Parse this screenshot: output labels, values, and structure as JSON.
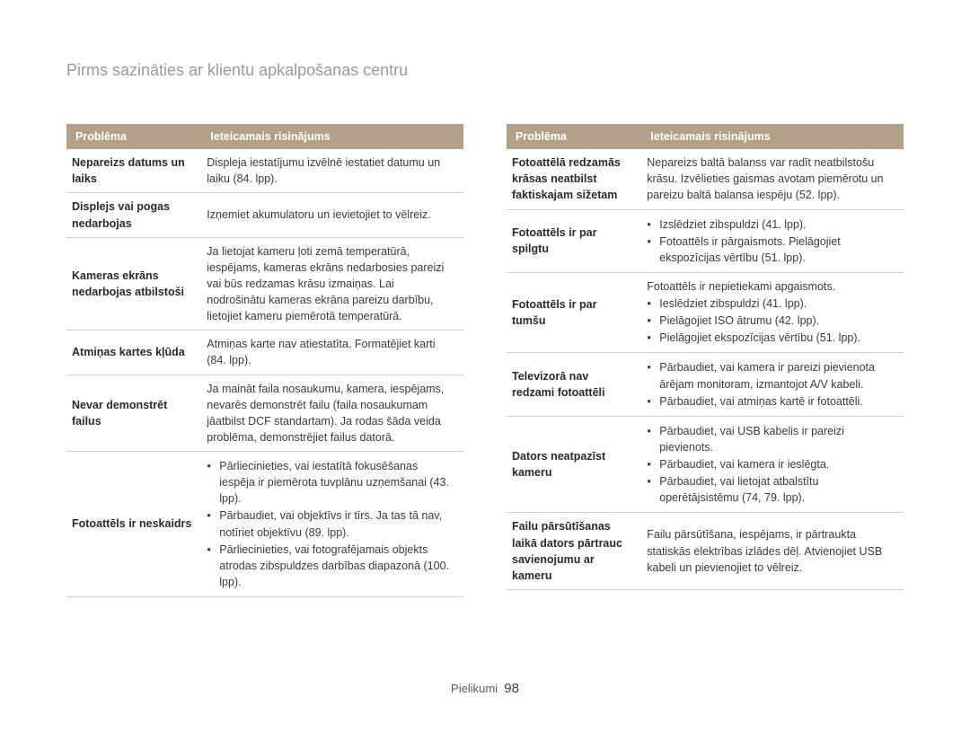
{
  "page": {
    "title": "Pirms sazināties ar klientu apkalpošanas centru",
    "footer_label": "Pielikumi",
    "footer_page": "98"
  },
  "headers": {
    "problem": "Problēma",
    "solution": "Ieteicamais risinājums"
  },
  "table_left": {
    "rows": [
      {
        "problem": "Nepareizs datums un laiks",
        "solution_text": "Displeja iestatījumu izvēlnē iestatiet datumu un laiku (84. lpp)."
      },
      {
        "problem": "Displejs vai pogas nedarbojas",
        "solution_text": "Izņemiet akumulatoru un ievietojiet to vēlreiz."
      },
      {
        "problem": "Kameras ekrāns nedarbojas atbilstoši",
        "solution_text": "Ja lietojat kameru ļoti zemā temperatūrā, iespējams, kameras ekrāns nedarbosies pareizi vai būs redzamas krāsu izmaiņas. Lai nodrošinātu kameras ekrāna pareizu darbību, lietojiet kameru piemērotā temperatūrā."
      },
      {
        "problem": "Atmiņas kartes kļūda",
        "solution_text": "Atmiņas karte nav atiestatīta. Formatējiet karti (84. lpp)."
      },
      {
        "problem": "Nevar demonstrēt failus",
        "solution_text": "Ja maināt faila nosaukumu, kamera, iespējams, nevarēs demonstrēt failu (faila nosaukumam jāatbilst DCF standartam). Ja rodas šāda veida problēma, demonstrējiet failus datorā."
      },
      {
        "problem": "Fotoattēls ir neskaidrs",
        "solution_list": [
          "Pārliecinieties, vai iestatītā fokusēšanas iespēja ir piemērota tuvplānu uzņemšanai (43. lpp).",
          "Pārbaudiet, vai objektīvs ir tīrs. Ja tas tā nav, notīriet objektīvu (89. lpp).",
          "Pārliecinieties, vai fotografējamais objekts atrodas zibspuldzes darbības diapazonā (100. lpp)."
        ]
      }
    ]
  },
  "table_right": {
    "rows": [
      {
        "problem": "Fotoattēlā redzamās krāsas neatbilst faktiskajam sižetam",
        "solution_text": "Nepareizs baltā balanss var radīt neatbilstošu krāsu. Izvēlieties gaismas avotam piemērotu un pareizu baltā balansa iespēju (52. lpp)."
      },
      {
        "problem": "Fotoattēls ir par spilgtu",
        "solution_list": [
          "Izslēdziet zibspuldzi (41. lpp).",
          "Fotoattēls ir pārgaismots. Pielāgojiet ekspozīcijas vērtību (51. lpp)."
        ]
      },
      {
        "problem": "Fotoattēls ir par tumšu",
        "solution_pretext": "Fotoattēls ir nepietiekami apgaismots.",
        "solution_list": [
          "Ieslēdziet zibspuldzi (41. lpp).",
          "Pielāgojiet ISO ātrumu (42. lpp).",
          "Pielāgojiet ekspozīcijas vērtību (51. lpp)."
        ]
      },
      {
        "problem": "Televizorā nav redzami fotoattēli",
        "solution_list": [
          "Pārbaudiet, vai kamera ir pareizi pievienota ārējam monitoram, izmantojot A/V kabeli.",
          "Pārbaudiet, vai atmiņas kartē ir fotoattēli."
        ]
      },
      {
        "problem": "Dators neatpazīst kameru",
        "solution_list": [
          "Pārbaudiet, vai USB kabelis ir pareizi pievienots.",
          "Pārbaudiet, vai kamera ir ieslēgta.",
          "Pārbaudiet, vai lietojat atbalstītu operētājsistēmu (74, 79. lpp)."
        ]
      },
      {
        "problem": "Failu pārsūtīšanas laikā dators pārtrauc savienojumu ar kameru",
        "solution_text": "Failu pārsūtīšana, iespējams, ir pārtraukta statiskās elektrības izlādes dēļ. Atvienojiet USB kabeli un pievienojiet to vēlreiz."
      }
    ]
  },
  "style": {
    "header_bg": "#b3a088",
    "header_fg": "#ffffff",
    "border_color": "#cfcfcf",
    "title_color": "#9a9a9a",
    "text_color": "#3a3a3a",
    "font_size_body": 12.5,
    "font_size_title": 18
  }
}
